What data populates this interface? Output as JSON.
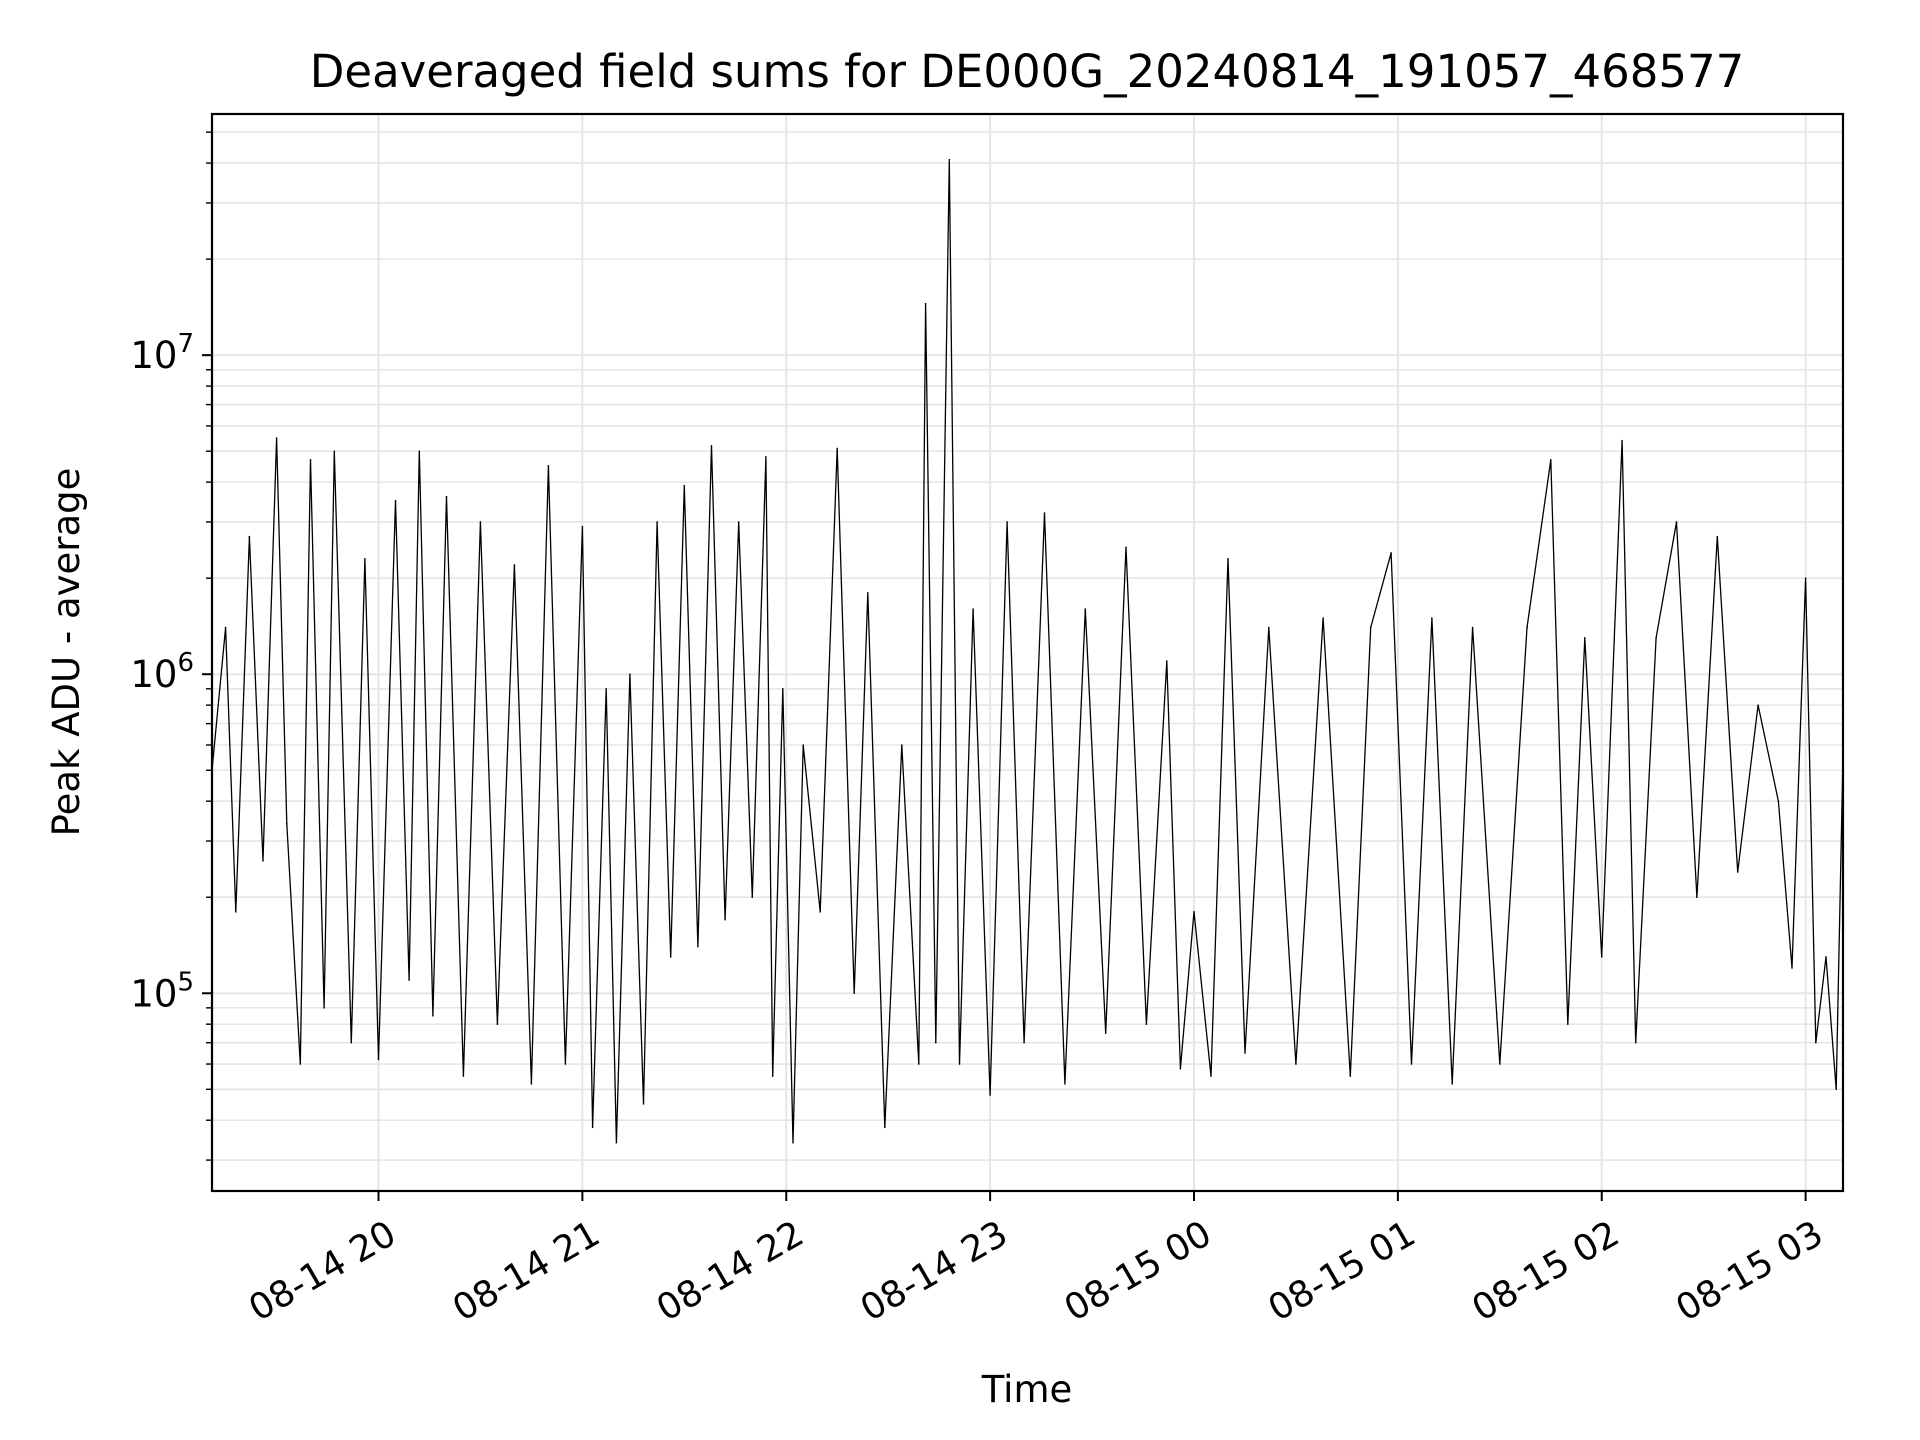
{
  "chart_data": {
    "type": "line",
    "title": "Deaveraged field sums for DE000G_20240814_191057_468577",
    "xlabel": "Time",
    "ylabel": "Peak ADU - average",
    "x_range": [
      "2024-08-14 19:11",
      "2024-08-15 03:11"
    ],
    "x_ticks": [
      {
        "t": "2024-08-14 20:00",
        "label": "08-14 20"
      },
      {
        "t": "2024-08-14 21:00",
        "label": "08-14 21"
      },
      {
        "t": "2024-08-14 22:00",
        "label": "08-14 22"
      },
      {
        "t": "2024-08-14 23:00",
        "label": "08-14 23"
      },
      {
        "t": "2024-08-15 00:00",
        "label": "08-15 00"
      },
      {
        "t": "2024-08-15 01:00",
        "label": "08-15 01"
      },
      {
        "t": "2024-08-15 02:00",
        "label": "08-15 02"
      },
      {
        "t": "2024-08-15 03:00",
        "label": "08-15 03"
      }
    ],
    "y_scale": "log",
    "ylim": [
      24000,
      57000000
    ],
    "y_ticks": [
      {
        "value": 100000,
        "base": "10",
        "exp": "5"
      },
      {
        "value": 1000000,
        "base": "10",
        "exp": "6"
      },
      {
        "value": 10000000,
        "base": "10",
        "exp": "7"
      }
    ],
    "grid": true,
    "line_color": "#000000",
    "grid_color": "#e6e6e6",
    "series": [
      {
        "points": [
          [
            "2024-08-14 19:11",
            500000
          ],
          [
            "2024-08-14 19:15",
            1400000
          ],
          [
            "2024-08-14 19:18",
            180000
          ],
          [
            "2024-08-14 19:22",
            2700000
          ],
          [
            "2024-08-14 19:26",
            260000
          ],
          [
            "2024-08-14 19:30",
            5500000
          ],
          [
            "2024-08-14 19:33",
            340000
          ],
          [
            "2024-08-14 19:37",
            60000
          ],
          [
            "2024-08-14 19:40",
            4700000
          ],
          [
            "2024-08-14 19:44",
            90000
          ],
          [
            "2024-08-14 19:47",
            5000000
          ],
          [
            "2024-08-14 19:52",
            70000
          ],
          [
            "2024-08-14 19:56",
            2300000
          ],
          [
            "2024-08-14 20:00",
            62000
          ],
          [
            "2024-08-14 20:05",
            3500000
          ],
          [
            "2024-08-14 20:09",
            110000
          ],
          [
            "2024-08-14 20:12",
            5000000
          ],
          [
            "2024-08-14 20:16",
            85000
          ],
          [
            "2024-08-14 20:20",
            3600000
          ],
          [
            "2024-08-14 20:25",
            55000
          ],
          [
            "2024-08-14 20:30",
            3000000
          ],
          [
            "2024-08-14 20:35",
            80000
          ],
          [
            "2024-08-14 20:40",
            2200000
          ],
          [
            "2024-08-14 20:45",
            52000
          ],
          [
            "2024-08-14 20:50",
            4500000
          ],
          [
            "2024-08-14 20:55",
            60000
          ],
          [
            "2024-08-14 21:00",
            2900000
          ],
          [
            "2024-08-14 21:03",
            38000
          ],
          [
            "2024-08-14 21:07",
            900000
          ],
          [
            "2024-08-14 21:10",
            34000
          ],
          [
            "2024-08-14 21:14",
            1000000
          ],
          [
            "2024-08-14 21:18",
            45000
          ],
          [
            "2024-08-14 21:22",
            3000000
          ],
          [
            "2024-08-14 21:26",
            130000
          ],
          [
            "2024-08-14 21:30",
            3900000
          ],
          [
            "2024-08-14 21:34",
            140000
          ],
          [
            "2024-08-14 21:38",
            5200000
          ],
          [
            "2024-08-14 21:42",
            170000
          ],
          [
            "2024-08-14 21:46",
            3000000
          ],
          [
            "2024-08-14 21:50",
            200000
          ],
          [
            "2024-08-14 21:54",
            4800000
          ],
          [
            "2024-08-14 21:56",
            55000
          ],
          [
            "2024-08-14 21:59",
            900000
          ],
          [
            "2024-08-14 22:02",
            34000
          ],
          [
            "2024-08-14 22:05",
            600000
          ],
          [
            "2024-08-14 22:10",
            180000
          ],
          [
            "2024-08-14 22:15",
            5100000
          ],
          [
            "2024-08-14 22:20",
            100000
          ],
          [
            "2024-08-14 22:24",
            1800000
          ],
          [
            "2024-08-14 22:29",
            38000
          ],
          [
            "2024-08-14 22:34",
            600000
          ],
          [
            "2024-08-14 22:39",
            60000
          ],
          [
            "2024-08-14 22:41",
            14500000
          ],
          [
            "2024-08-14 22:44",
            70000
          ],
          [
            "2024-08-14 22:48",
            41000000
          ],
          [
            "2024-08-14 22:51",
            60000
          ],
          [
            "2024-08-14 22:55",
            1600000
          ],
          [
            "2024-08-14 23:00",
            48000
          ],
          [
            "2024-08-14 23:05",
            3000000
          ],
          [
            "2024-08-14 23:10",
            70000
          ],
          [
            "2024-08-14 23:16",
            3200000
          ],
          [
            "2024-08-14 23:22",
            52000
          ],
          [
            "2024-08-14 23:28",
            1600000
          ],
          [
            "2024-08-14 23:34",
            75000
          ],
          [
            "2024-08-14 23:40",
            2500000
          ],
          [
            "2024-08-14 23:46",
            80000
          ],
          [
            "2024-08-14 23:52",
            1100000
          ],
          [
            "2024-08-14 23:56",
            58000
          ],
          [
            "2024-08-15 00:00",
            180000
          ],
          [
            "2024-08-15 00:05",
            55000
          ],
          [
            "2024-08-15 00:10",
            2300000
          ],
          [
            "2024-08-15 00:15",
            65000
          ],
          [
            "2024-08-15 00:22",
            1400000
          ],
          [
            "2024-08-15 00:30",
            60000
          ],
          [
            "2024-08-15 00:38",
            1500000
          ],
          [
            "2024-08-15 00:46",
            55000
          ],
          [
            "2024-08-15 00:52",
            1400000
          ],
          [
            "2024-08-15 00:58",
            2400000
          ],
          [
            "2024-08-15 01:04",
            60000
          ],
          [
            "2024-08-15 01:10",
            1500000
          ],
          [
            "2024-08-15 01:16",
            52000
          ],
          [
            "2024-08-15 01:22",
            1400000
          ],
          [
            "2024-08-15 01:30",
            60000
          ],
          [
            "2024-08-15 01:38",
            1400000
          ],
          [
            "2024-08-15 01:45",
            4700000
          ],
          [
            "2024-08-15 01:50",
            80000
          ],
          [
            "2024-08-15 01:55",
            1300000
          ],
          [
            "2024-08-15 02:00",
            130000
          ],
          [
            "2024-08-15 02:06",
            5400000
          ],
          [
            "2024-08-15 02:10",
            70000
          ],
          [
            "2024-08-15 02:16",
            1300000
          ],
          [
            "2024-08-15 02:22",
            3000000
          ],
          [
            "2024-08-15 02:28",
            200000
          ],
          [
            "2024-08-15 02:34",
            2700000
          ],
          [
            "2024-08-15 02:40",
            240000
          ],
          [
            "2024-08-15 02:46",
            800000
          ],
          [
            "2024-08-15 02:52",
            400000
          ],
          [
            "2024-08-15 02:56",
            120000
          ],
          [
            "2024-08-15 03:00",
            2000000
          ],
          [
            "2024-08-15 03:03",
            70000
          ],
          [
            "2024-08-15 03:06",
            130000
          ],
          [
            "2024-08-15 03:09",
            50000
          ],
          [
            "2024-08-15 03:11",
            560000
          ]
        ]
      }
    ]
  }
}
